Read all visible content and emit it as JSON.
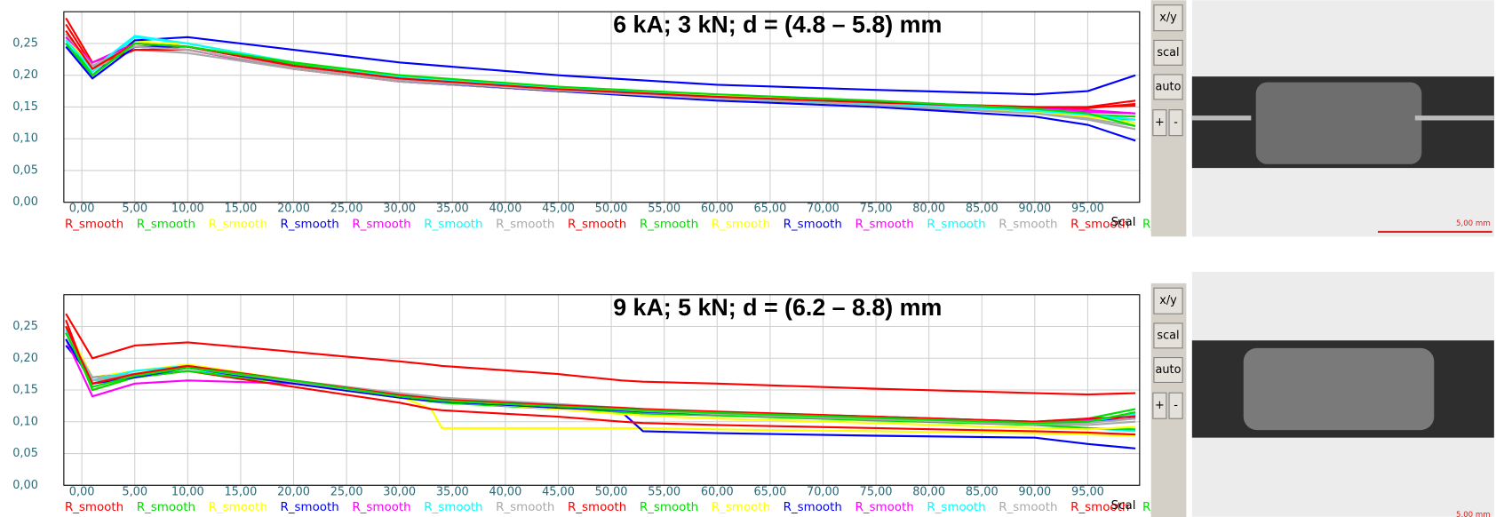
{
  "chart_data": [
    {
      "type": "line",
      "title": "6 kA; 3 kN; d = (4.8 – 5.8) mm",
      "annotation": "Scal",
      "xlim": [
        -1.7,
        99.9
      ],
      "ylim": [
        0,
        0.3
      ],
      "grid": true,
      "xticks": [
        {
          "value": 0,
          "label": "0,00"
        },
        {
          "value": 5,
          "label": "5,00"
        },
        {
          "value": 10,
          "label": "10,00"
        },
        {
          "value": 15,
          "label": "15,00"
        },
        {
          "value": 20,
          "label": "20,00"
        },
        {
          "value": 25,
          "label": "25,00"
        },
        {
          "value": 30,
          "label": "30,00"
        },
        {
          "value": 35,
          "label": "35,00"
        },
        {
          "value": 40,
          "label": "40,00"
        },
        {
          "value": 45,
          "label": "45,00"
        },
        {
          "value": 50,
          "label": "50,00"
        },
        {
          "value": 55,
          "label": "55,00"
        },
        {
          "value": 60,
          "label": "60,00"
        },
        {
          "value": 65,
          "label": "65,00"
        },
        {
          "value": 70,
          "label": "70,00"
        },
        {
          "value": 75,
          "label": "75,00"
        },
        {
          "value": 80,
          "label": "80,00"
        },
        {
          "value": 85,
          "label": "85,00"
        },
        {
          "value": 90,
          "label": "90,00"
        },
        {
          "value": 95,
          "label": "95,00"
        }
      ],
      "yticks": [
        {
          "value": 0,
          "label": "0,00"
        },
        {
          "value": 0.05,
          "label": "0,05"
        },
        {
          "value": 0.1,
          "label": "0,10"
        },
        {
          "value": 0.15,
          "label": "0,15"
        },
        {
          "value": 0.2,
          "label": "0,20"
        },
        {
          "value": 0.25,
          "label": "0,25"
        }
      ],
      "x": [
        -1.5,
        1,
        5,
        10,
        20,
        30,
        45,
        60,
        75,
        90,
        95,
        99.5
      ],
      "series": [
        {
          "name": "R_smooth",
          "color": "#ff0000",
          "values": [
            0.29,
            0.22,
            0.245,
            0.24,
            0.21,
            0.19,
            0.175,
            0.165,
            0.157,
            0.148,
            0.15,
            0.16
          ]
        },
        {
          "name": "R_smooth",
          "color": "#00e000",
          "values": [
            0.25,
            0.2,
            0.25,
            0.25,
            0.22,
            0.2,
            0.18,
            0.168,
            0.157,
            0.143,
            0.135,
            0.13
          ]
        },
        {
          "name": "R_smooth",
          "color": "#ffff00",
          "values": [
            0.27,
            0.21,
            0.255,
            0.245,
            0.215,
            0.195,
            0.178,
            0.165,
            0.155,
            0.142,
            0.138,
            0.135
          ]
        },
        {
          "name": "R_smooth",
          "color": "#0000ff",
          "values": [
            0.25,
            0.2,
            0.255,
            0.26,
            0.24,
            0.22,
            0.2,
            0.185,
            0.177,
            0.17,
            0.175,
            0.2
          ]
        },
        {
          "name": "R_smooth",
          "color": "#ff00ff",
          "values": [
            0.26,
            0.215,
            0.245,
            0.24,
            0.21,
            0.19,
            0.175,
            0.163,
            0.155,
            0.148,
            0.145,
            0.14
          ]
        },
        {
          "name": "R_smooth",
          "color": "#00ffff",
          "values": [
            0.25,
            0.205,
            0.26,
            0.25,
            0.22,
            0.198,
            0.18,
            0.167,
            0.156,
            0.145,
            0.138,
            0.125
          ]
        },
        {
          "name": "R_smooth",
          "color": "#aaaaaa",
          "values": [
            0.27,
            0.21,
            0.24,
            0.235,
            0.21,
            0.19,
            0.175,
            0.162,
            0.152,
            0.14,
            0.13,
            0.115
          ]
        },
        {
          "name": "R_smooth",
          "color": "#ff0000",
          "values": [
            0.28,
            0.215,
            0.24,
            0.24,
            0.212,
            0.192,
            0.176,
            0.165,
            0.156,
            0.15,
            0.148,
            0.155
          ]
        },
        {
          "name": "R_smooth",
          "color": "#00e000",
          "values": [
            0.26,
            0.2,
            0.25,
            0.245,
            0.218,
            0.198,
            0.18,
            0.168,
            0.158,
            0.145,
            0.138,
            0.135
          ]
        },
        {
          "name": "R_smooth",
          "color": "#ffff00",
          "values": [
            0.26,
            0.21,
            0.25,
            0.25,
            0.22,
            0.2,
            0.182,
            0.168,
            0.156,
            0.142,
            0.135,
            0.125
          ]
        },
        {
          "name": "R_smooth",
          "color": "#0000ff",
          "values": [
            0.245,
            0.195,
            0.245,
            0.245,
            0.215,
            0.192,
            0.175,
            0.16,
            0.15,
            0.135,
            0.122,
            0.097
          ]
        },
        {
          "name": "R_smooth",
          "color": "#ff00ff",
          "values": [
            0.26,
            0.22,
            0.25,
            0.245,
            0.215,
            0.195,
            0.178,
            0.165,
            0.155,
            0.145,
            0.142,
            0.14
          ]
        },
        {
          "name": "R_smooth",
          "color": "#00ffff",
          "values": [
            0.255,
            0.21,
            0.262,
            0.25,
            0.22,
            0.198,
            0.18,
            0.166,
            0.155,
            0.144,
            0.138,
            0.13
          ]
        },
        {
          "name": "R_smooth",
          "color": "#aaaaaa",
          "values": [
            0.265,
            0.215,
            0.245,
            0.24,
            0.212,
            0.192,
            0.176,
            0.163,
            0.153,
            0.14,
            0.132,
            0.12
          ]
        },
        {
          "name": "R_smooth",
          "color": "#ff0000",
          "values": [
            0.27,
            0.21,
            0.25,
            0.245,
            0.215,
            0.195,
            0.178,
            0.166,
            0.157,
            0.15,
            0.15,
            0.152
          ]
        },
        {
          "name": "R_smooth",
          "color": "#00e000",
          "values": [
            0.25,
            0.2,
            0.25,
            0.245,
            0.22,
            0.2,
            0.182,
            0.17,
            0.16,
            0.147,
            0.14,
            0.12
          ]
        }
      ]
    },
    {
      "type": "line",
      "title": "9 kA; 5 kN; d = (6.2 – 8.8) mm",
      "annotation": "Scal",
      "xlim": [
        -1.7,
        99.9
      ],
      "ylim": [
        0,
        0.3
      ],
      "grid": true,
      "xticks": [
        {
          "value": 0,
          "label": "0,00"
        },
        {
          "value": 5,
          "label": "5,00"
        },
        {
          "value": 10,
          "label": "10,00"
        },
        {
          "value": 15,
          "label": "15,00"
        },
        {
          "value": 20,
          "label": "20,00"
        },
        {
          "value": 25,
          "label": "25,00"
        },
        {
          "value": 30,
          "label": "30,00"
        },
        {
          "value": 35,
          "label": "35,00"
        },
        {
          "value": 40,
          "label": "40,00"
        },
        {
          "value": 45,
          "label": "45,00"
        },
        {
          "value": 50,
          "label": "50,00"
        },
        {
          "value": 55,
          "label": "55,00"
        },
        {
          "value": 60,
          "label": "60,00"
        },
        {
          "value": 65,
          "label": "65,00"
        },
        {
          "value": 70,
          "label": "70,00"
        },
        {
          "value": 75,
          "label": "75,00"
        },
        {
          "value": 80,
          "label": "80,00"
        },
        {
          "value": 85,
          "label": "85,00"
        },
        {
          "value": 90,
          "label": "90,00"
        },
        {
          "value": 95,
          "label": "95,00"
        }
      ],
      "yticks": [
        {
          "value": 0,
          "label": "0,00"
        },
        {
          "value": 0.05,
          "label": "0,05"
        },
        {
          "value": 0.1,
          "label": "0,10"
        },
        {
          "value": 0.15,
          "label": "0,15"
        },
        {
          "value": 0.2,
          "label": "0,20"
        },
        {
          "value": 0.25,
          "label": "0,25"
        }
      ],
      "x": [
        -1.5,
        1,
        5,
        10,
        20,
        30,
        33,
        34,
        45,
        51,
        53,
        60,
        75,
        90,
        95,
        99.5
      ],
      "series": [
        {
          "name": "R_smooth",
          "color": "#ff0000",
          "values": [
            0.27,
            0.2,
            0.22,
            0.225,
            0.21,
            0.195,
            0.19,
            0.188,
            0.175,
            0.165,
            0.163,
            0.16,
            0.152,
            0.145,
            0.143,
            0.145
          ]
        },
        {
          "name": "R_smooth",
          "color": "#00e000",
          "values": [
            0.24,
            0.16,
            0.175,
            0.185,
            0.165,
            0.14,
            0.135,
            0.134,
            0.125,
            0.12,
            0.118,
            0.115,
            0.108,
            0.1,
            0.105,
            0.12
          ]
        },
        {
          "name": "R_smooth",
          "color": "#ffff00",
          "values": [
            0.25,
            0.17,
            0.18,
            0.19,
            0.165,
            0.14,
            0.12,
            0.09,
            0.09,
            0.09,
            0.09,
            0.088,
            0.085,
            0.082,
            0.08,
            0.078
          ]
        },
        {
          "name": "R_smooth",
          "color": "#0000ff",
          "values": [
            0.22,
            0.17,
            0.175,
            0.185,
            0.165,
            0.14,
            0.135,
            0.134,
            0.125,
            0.115,
            0.085,
            0.082,
            0.078,
            0.075,
            0.065,
            0.058
          ]
        },
        {
          "name": "R_smooth",
          "color": "#ff00ff",
          "values": [
            0.23,
            0.14,
            0.16,
            0.165,
            0.16,
            0.14,
            0.135,
            0.134,
            0.125,
            0.12,
            0.118,
            0.115,
            0.108,
            0.1,
            0.1,
            0.11
          ]
        },
        {
          "name": "R_smooth",
          "color": "#00ffff",
          "values": [
            0.24,
            0.165,
            0.17,
            0.18,
            0.165,
            0.142,
            0.137,
            0.135,
            0.125,
            0.12,
            0.118,
            0.113,
            0.105,
            0.095,
            0.09,
            0.085
          ]
        },
        {
          "name": "R_smooth",
          "color": "#aaaaaa",
          "values": [
            0.24,
            0.17,
            0.175,
            0.185,
            0.165,
            0.145,
            0.14,
            0.138,
            0.128,
            0.122,
            0.12,
            0.115,
            0.105,
            0.095,
            0.095,
            0.1
          ]
        },
        {
          "name": "R_smooth",
          "color": "#ff0000",
          "values": [
            0.26,
            0.15,
            0.17,
            0.18,
            0.155,
            0.13,
            0.12,
            0.118,
            0.108,
            0.1,
            0.098,
            0.095,
            0.09,
            0.085,
            0.083,
            0.08
          ]
        },
        {
          "name": "R_smooth",
          "color": "#00e000",
          "values": [
            0.25,
            0.15,
            0.17,
            0.18,
            0.16,
            0.138,
            0.132,
            0.13,
            0.12,
            0.115,
            0.113,
            0.11,
            0.102,
            0.095,
            0.09,
            0.088
          ]
        },
        {
          "name": "R_smooth",
          "color": "#ffff00",
          "values": [
            0.24,
            0.16,
            0.175,
            0.19,
            0.165,
            0.14,
            0.135,
            0.133,
            0.12,
            0.112,
            0.11,
            0.105,
            0.098,
            0.09,
            0.088,
            0.092
          ]
        },
        {
          "name": "R_smooth",
          "color": "#0000ff",
          "values": [
            0.23,
            0.16,
            0.17,
            0.185,
            0.16,
            0.138,
            0.133,
            0.132,
            0.122,
            0.118,
            0.116,
            0.112,
            0.105,
            0.098,
            0.1,
            0.105
          ]
        },
        {
          "name": "R_smooth",
          "color": "#ff00ff",
          "values": [
            0.24,
            0.16,
            0.175,
            0.185,
            0.163,
            0.14,
            0.135,
            0.134,
            0.124,
            0.12,
            0.118,
            0.113,
            0.105,
            0.1,
            0.103,
            0.11
          ]
        },
        {
          "name": "R_smooth",
          "color": "#00ffff",
          "values": [
            0.245,
            0.165,
            0.18,
            0.188,
            0.165,
            0.142,
            0.137,
            0.135,
            0.126,
            0.121,
            0.119,
            0.114,
            0.106,
            0.097,
            0.1,
            0.112
          ]
        },
        {
          "name": "R_smooth",
          "color": "#aaaaaa",
          "values": [
            0.24,
            0.165,
            0.175,
            0.185,
            0.163,
            0.14,
            0.135,
            0.133,
            0.124,
            0.119,
            0.117,
            0.112,
            0.104,
            0.096,
            0.098,
            0.105
          ]
        },
        {
          "name": "R_smooth",
          "color": "#ff0000",
          "values": [
            0.25,
            0.16,
            0.175,
            0.188,
            0.165,
            0.142,
            0.137,
            0.135,
            0.126,
            0.122,
            0.12,
            0.116,
            0.108,
            0.1,
            0.105,
            0.108
          ]
        },
        {
          "name": "R_smooth",
          "color": "#00e000",
          "values": [
            0.24,
            0.155,
            0.172,
            0.185,
            0.165,
            0.14,
            0.135,
            0.133,
            0.124,
            0.12,
            0.118,
            0.114,
            0.106,
            0.098,
            0.1,
            0.115
          ]
        }
      ]
    }
  ],
  "toolbar": [
    "x/y",
    "scal",
    "auto",
    "+",
    "-"
  ],
  "scale_bar_label": "5,00 mm"
}
